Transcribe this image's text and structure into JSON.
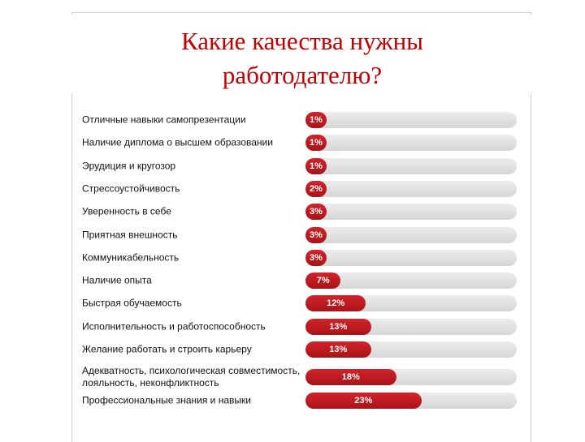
{
  "chart_data": {
    "type": "bar",
    "orientation": "horizontal",
    "title": "Какие качества нужны работодателю?",
    "categories": [
      "Отличные навыки самопрезентации",
      "Наличие диплома о высшем образовании",
      "Эрудиция и кругозор",
      "Стрессоустойчивость",
      "Уверенность в себе",
      "Приятная внешность",
      "Коммуникабельность",
      "Наличие опыта",
      "Быстрая обучаемость",
      "Исполнительность и работоспособность",
      "Желание работать и строить карьеру",
      "Адекватность, психологическая совместимость, лояльность, неконфликтность",
      "Профессиональные знания и навыки"
    ],
    "values": [
      1,
      1,
      1,
      2,
      3,
      3,
      3,
      7,
      12,
      13,
      13,
      18,
      23
    ],
    "value_labels": [
      "1%",
      "1%",
      "1%",
      "2%",
      "3%",
      "3%",
      "3%",
      "7%",
      "12%",
      "13%",
      "13%",
      "18%",
      "23%"
    ],
    "color": "#d2232a"
  }
}
